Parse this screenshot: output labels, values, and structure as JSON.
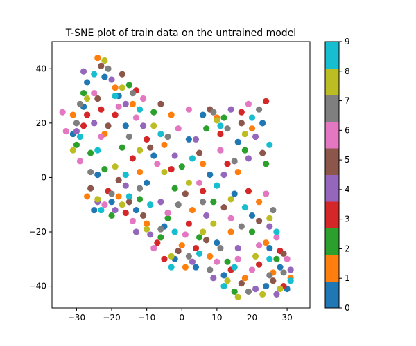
{
  "chart_data": {
    "type": "scatter",
    "title": "T-SNE plot of train data on the untrained model",
    "xlabel": "",
    "ylabel": "",
    "xlim": [
      -37,
      36.5
    ],
    "ylim": [
      -48,
      50
    ],
    "xticks": [
      -30,
      -20,
      -10,
      0,
      10,
      20,
      30
    ],
    "yticks": [
      -40,
      -20,
      0,
      20,
      40
    ],
    "grid": false,
    "colorbar": {
      "range": [
        0,
        9
      ],
      "ticks": [
        0,
        1,
        2,
        3,
        4,
        5,
        6,
        7,
        8,
        9
      ],
      "colors": [
        "#1f77b4",
        "#ff7f0e",
        "#2ca02c",
        "#d62728",
        "#9467bd",
        "#8c564b",
        "#e377c2",
        "#7f7f7f",
        "#bcbd22",
        "#17becf"
      ]
    },
    "series": [
      {
        "label": 0,
        "color": "#1f77b4",
        "points": [
          [
            -27,
            35
          ],
          [
            -22,
            37
          ],
          [
            -31,
            16
          ],
          [
            -24,
            1
          ],
          [
            -13,
            -12
          ],
          [
            -2,
            -30
          ],
          [
            4,
            -33
          ],
          [
            12,
            -36
          ],
          [
            24,
            -40
          ],
          [
            30,
            -41
          ],
          [
            6,
            23
          ],
          [
            16,
            13
          ],
          [
            23,
            20
          ],
          [
            -8,
            8
          ],
          [
            -20,
            -9
          ],
          [
            15,
            -6
          ],
          [
            20,
            -14
          ],
          [
            25,
            -26
          ],
          [
            -16,
            19
          ],
          [
            2,
            14
          ],
          [
            10,
            -24
          ],
          [
            -5,
            -18
          ],
          [
            -28,
            26
          ],
          [
            -18,
            30
          ],
          [
            28,
            -33
          ],
          [
            8,
            1
          ],
          [
            -10,
            -2
          ],
          [
            -25,
            -12
          ]
        ]
      },
      {
        "label": 1,
        "color": "#ff7f0e",
        "points": [
          [
            -24,
            44
          ],
          [
            -19,
            33
          ],
          [
            -31,
            23
          ],
          [
            -18,
            -7
          ],
          [
            -10,
            -17
          ],
          [
            0,
            -25
          ],
          [
            8,
            -29
          ],
          [
            18,
            -37
          ],
          [
            26,
            -35
          ],
          [
            10,
            22
          ],
          [
            20,
            18
          ],
          [
            -5,
            12
          ],
          [
            -14,
            27
          ],
          [
            3,
            -12
          ],
          [
            14,
            -20
          ],
          [
            22,
            -9
          ],
          [
            -27,
            -7
          ],
          [
            -22,
            16
          ],
          [
            6,
            5
          ],
          [
            31,
            -37
          ],
          [
            -12,
            2
          ],
          [
            16,
            2
          ],
          [
            -3,
            23
          ],
          [
            24,
            -24
          ],
          [
            1,
            -33
          ]
        ]
      },
      {
        "label": 2,
        "color": "#2ca02c",
        "points": [
          [
            -26,
            9
          ],
          [
            -28,
            31
          ],
          [
            -15,
            34
          ],
          [
            -22,
            3
          ],
          [
            -12,
            -8
          ],
          [
            -4,
            -15
          ],
          [
            5,
            -22
          ],
          [
            12,
            22
          ],
          [
            18,
            10
          ],
          [
            27,
            -30
          ],
          [
            -8,
            24
          ],
          [
            -17,
            11
          ],
          [
            0,
            4
          ],
          [
            9,
            -9
          ],
          [
            20,
            -20
          ],
          [
            -2,
            -4
          ],
          [
            13,
            -31
          ],
          [
            -30,
            12
          ],
          [
            24,
            5
          ],
          [
            -6,
            -22
          ],
          [
            15,
            -42
          ],
          [
            -20,
            -14
          ],
          [
            7,
            18
          ]
        ]
      },
      {
        "label": 3,
        "color": "#d62728",
        "points": [
          [
            -27,
            23
          ],
          [
            -13,
            32
          ],
          [
            -21,
            -5
          ],
          [
            -16,
            -13
          ],
          [
            -7,
            -24
          ],
          [
            4,
            -26
          ],
          [
            14,
            -34
          ],
          [
            28,
            -27
          ],
          [
            24,
            28
          ],
          [
            13,
            5
          ],
          [
            -19,
            23
          ],
          [
            -10,
            14
          ],
          [
            -3,
            3
          ],
          [
            2,
            -17
          ],
          [
            19,
            -5
          ],
          [
            -28,
            19
          ],
          [
            11,
            16
          ],
          [
            -5,
            -30
          ],
          [
            22,
            -32
          ],
          [
            29,
            -40
          ],
          [
            -14,
            7
          ],
          [
            17,
            24
          ],
          [
            -23,
            25
          ],
          [
            6,
            -5
          ]
        ]
      },
      {
        "label": 4,
        "color": "#9467bd",
        "points": [
          [
            -28,
            39
          ],
          [
            -20,
            36
          ],
          [
            -16,
            27
          ],
          [
            -25,
            20
          ],
          [
            -24,
            -9
          ],
          [
            -16,
            -3
          ],
          [
            -9,
            -21
          ],
          [
            3,
            -31
          ],
          [
            9,
            -37
          ],
          [
            21,
            -41
          ],
          [
            27,
            -43
          ],
          [
            14,
            25
          ],
          [
            21,
            15
          ],
          [
            -11,
            19
          ],
          [
            -2,
            8
          ],
          [
            7,
            -14
          ],
          [
            16,
            -26
          ],
          [
            -19,
            -12
          ],
          [
            12,
            1
          ],
          [
            25,
            -18
          ],
          [
            -30,
            17
          ],
          [
            -6,
            -9
          ],
          [
            19,
            7
          ],
          [
            31,
            -34
          ],
          [
            -13,
            -20
          ],
          [
            4,
            14
          ]
        ]
      },
      {
        "label": 5,
        "color": "#8c564b",
        "points": [
          [
            -23,
            41
          ],
          [
            -17,
            38
          ],
          [
            -26,
            -4
          ],
          [
            -18,
            -1
          ],
          [
            -11,
            -14
          ],
          [
            -1,
            -27
          ],
          [
            7,
            -23
          ],
          [
            17,
            -39
          ],
          [
            26,
            -38
          ],
          [
            8,
            25
          ],
          [
            17,
            20
          ],
          [
            -6,
            27
          ],
          [
            -24,
            29
          ],
          [
            1,
            -6
          ],
          [
            12,
            -11
          ],
          [
            22,
            -16
          ],
          [
            -15,
            -9
          ],
          [
            29,
            -28
          ],
          [
            -9,
            11
          ],
          [
            23,
            9
          ],
          [
            5,
            9
          ],
          [
            -21,
            19
          ]
        ]
      },
      {
        "label": 6,
        "color": "#e377c2",
        "points": [
          [
            -34,
            24
          ],
          [
            -25,
            31
          ],
          [
            -18,
            26
          ],
          [
            -13,
            22
          ],
          [
            -33,
            17
          ],
          [
            -23,
            15
          ],
          [
            -22,
            -10
          ],
          [
            -14,
            -16
          ],
          [
            -8,
            -26
          ],
          [
            1,
            -21
          ],
          [
            10,
            -31
          ],
          [
            20,
            -34
          ],
          [
            30,
            -30
          ],
          [
            27,
            -22
          ],
          [
            19,
            27
          ],
          [
            11,
            10
          ],
          [
            -1,
            18
          ],
          [
            -7,
            5
          ],
          [
            5,
            -2
          ],
          [
            14,
            -15
          ],
          [
            24,
            -6
          ],
          [
            -29,
            6
          ],
          [
            -4,
            -13
          ],
          [
            16,
            -30
          ],
          [
            -11,
            29
          ],
          [
            2,
            25
          ],
          [
            22,
            -25
          ]
        ]
      },
      {
        "label": 7,
        "color": "#7f7f7f",
        "points": [
          [
            -29,
            27
          ],
          [
            -21,
            40
          ],
          [
            -14,
            31
          ],
          [
            -30,
            20
          ],
          [
            -20,
            -6
          ],
          [
            -12,
            -4
          ],
          [
            -6,
            -19
          ],
          [
            2,
            -29
          ],
          [
            8,
            -34
          ],
          [
            19,
            -42
          ],
          [
            25,
            -36
          ],
          [
            9,
            24
          ],
          [
            22,
            25
          ],
          [
            15,
            6
          ],
          [
            -4,
            15
          ],
          [
            -15,
            15
          ],
          [
            6,
            -9
          ],
          [
            17,
            -18
          ],
          [
            26,
            -12
          ],
          [
            -26,
            2
          ],
          [
            11,
            -26
          ],
          [
            -1,
            -10
          ],
          [
            29,
            -35
          ],
          [
            13,
            18
          ]
        ]
      },
      {
        "label": 8,
        "color": "#bcbd22",
        "points": [
          [
            -27,
            29
          ],
          [
            -22,
            43
          ],
          [
            -17,
            33
          ],
          [
            -24,
            -8
          ],
          [
            -17,
            -10
          ],
          [
            -10,
            -19
          ],
          [
            -3,
            -29
          ],
          [
            6,
            -20
          ],
          [
            13,
            -38
          ],
          [
            23,
            -43
          ],
          [
            28,
            -41
          ],
          [
            10,
            21
          ],
          [
            18,
            16
          ],
          [
            -8,
            19
          ],
          [
            -12,
            10
          ],
          [
            2,
            -2
          ],
          [
            14,
            -8
          ],
          [
            21,
            -29
          ],
          [
            -31,
            10
          ],
          [
            -5,
            2
          ],
          [
            9,
            -17
          ],
          [
            25,
            -15
          ],
          [
            -19,
            4
          ],
          [
            16,
            -44
          ]
        ]
      },
      {
        "label": 9,
        "color": "#17becf",
        "points": [
          [
            -25,
            38
          ],
          [
            -19,
            30
          ],
          [
            -12,
            25
          ],
          [
            -29,
            15
          ],
          [
            -23,
            -12
          ],
          [
            -15,
            -7
          ],
          [
            -9,
            -10
          ],
          [
            -2,
            -20
          ],
          [
            5,
            -28
          ],
          [
            15,
            -33
          ],
          [
            25,
            -30
          ],
          [
            31,
            -38
          ],
          [
            11,
            19
          ],
          [
            20,
            22
          ],
          [
            25,
            12
          ],
          [
            -6,
            16
          ],
          [
            -16,
            1
          ],
          [
            3,
            7
          ],
          [
            10,
            -3
          ],
          [
            18,
            -11
          ],
          [
            -24,
            10
          ],
          [
            27,
            -20
          ],
          [
            -3,
            -33
          ],
          [
            12,
            -40
          ]
        ]
      }
    ]
  }
}
